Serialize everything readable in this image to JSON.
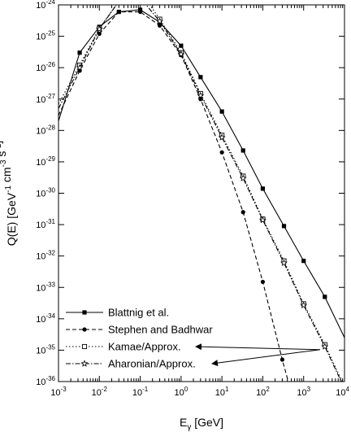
{
  "chart_data": {
    "type": "line",
    "title": "",
    "xlabel": "E_γ [GeV]",
    "ylabel": "Q(E) [GeV^-1 cm^-3 s^-1]",
    "x_scale": "log",
    "y_scale": "log",
    "xlim": [
      0.001,
      10000
    ],
    "ylim": [
      1e-36,
      1e-24
    ],
    "x_ticks": [
      "10^-3",
      "10^-2",
      "10^-1",
      "10^0",
      "10^1",
      "10^2",
      "10^3",
      "10^4"
    ],
    "y_ticks": [
      "10^-24",
      "10^-25",
      "10^-26",
      "10^-27",
      "10^-28",
      "10^-29",
      "10^-30",
      "10^-31",
      "10^-32",
      "10^-33",
      "10^-34",
      "10^-35",
      "10^-36"
    ],
    "legend_position": "bottom-left",
    "series": [
      {
        "name": "Blattnig et al.",
        "line_style": "solid",
        "marker": "filled-square",
        "x": [
          0.001,
          0.0033,
          0.01,
          0.03,
          0.1,
          0.3,
          1,
          3,
          10,
          33,
          100,
          330,
          1000,
          3300,
          10000
        ],
        "y": [
          2e-28,
          3e-26,
          2e-25,
          6e-25,
          7e-25,
          2.8e-25,
          5e-26,
          5e-27,
          4e-28,
          2.3e-29,
          1.4e-30,
          9e-32,
          7e-33,
          5e-34,
          2.5e-35
        ],
        "marker_x": [
          0.0033,
          0.01,
          0.03,
          0.1,
          0.3,
          1,
          3,
          10,
          33,
          100,
          330,
          1000,
          3300
        ]
      },
      {
        "name": "Stephen and Badhwar",
        "line_style": "dashed",
        "marker": "filled-circle",
        "x": [
          0.001,
          0.0033,
          0.01,
          0.03,
          0.1,
          0.3,
          1,
          3,
          10,
          33,
          100,
          300,
          420
        ],
        "y": [
          3e-28,
          8e-27,
          1.2e-25,
          6e-25,
          6e-25,
          2.2e-25,
          2.5e-26,
          1e-27,
          2e-29,
          2.5e-31,
          1.5e-33,
          5e-36,
          1e-36
        ],
        "marker_x": [
          0.0033,
          0.01,
          0.03,
          0.1,
          0.3,
          1,
          3,
          10,
          33,
          100,
          300
        ]
      },
      {
        "name": "Kamae/Approx.",
        "line_style": "dotted",
        "marker": "open-square",
        "x": [
          0.001,
          0.0033,
          0.01,
          0.03,
          0.06,
          0.1,
          0.14,
          0.3,
          1,
          3,
          10,
          33,
          100,
          330,
          1000,
          3300,
          10000
        ],
        "y": [
          7e-28,
          1.2e-26,
          1.8e-25,
          1.3e-24,
          1.8e-24,
          2.3e-24,
          1.5e-24,
          3.5e-25,
          3e-26,
          1.5e-27,
          7e-29,
          3.5e-30,
          1.5e-31,
          7e-33,
          3e-34,
          1.5e-35,
          7e-37
        ],
        "marker_x": [
          0.0033,
          0.01,
          0.03,
          0.1,
          0.3,
          1,
          3,
          10,
          33,
          100,
          330,
          1000,
          3300
        ]
      },
      {
        "name": "Aharonian/Approx.",
        "line_style": "dash-dot",
        "marker": "open-star",
        "x": [
          0.001,
          0.0033,
          0.01,
          0.03,
          0.06,
          0.1,
          0.3,
          1,
          3,
          10,
          33,
          100,
          330,
          1000,
          3300,
          10000
        ],
        "y": [
          5e-28,
          1e-26,
          1.7e-25,
          1.3e-24,
          1.8e-24,
          1.7e-24,
          3e-25,
          2.7e-26,
          1.3e-27,
          6e-29,
          3e-30,
          1.4e-31,
          6e-33,
          2.7e-34,
          1.3e-35,
          6e-37
        ],
        "marker_x": [
          0.0033,
          0.01,
          0.03,
          0.1,
          0.3,
          1,
          3,
          10,
          33,
          100,
          330,
          1000,
          3300
        ]
      }
    ]
  }
}
